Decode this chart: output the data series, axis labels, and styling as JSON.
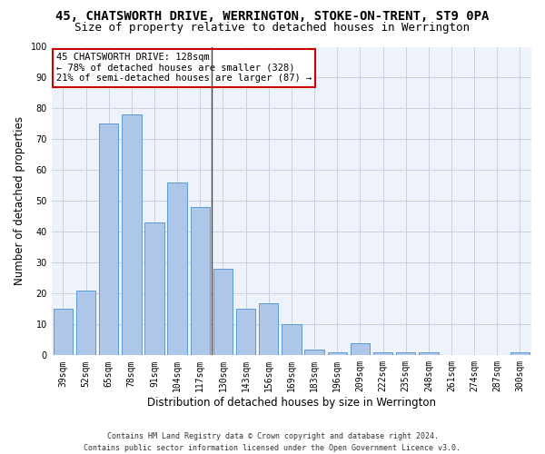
{
  "title": "45, CHATSWORTH DRIVE, WERRINGTON, STOKE-ON-TRENT, ST9 0PA",
  "subtitle": "Size of property relative to detached houses in Werrington",
  "xlabel": "Distribution of detached houses by size in Werrington",
  "ylabel": "Number of detached properties",
  "footer_line1": "Contains HM Land Registry data © Crown copyright and database right 2024.",
  "footer_line2": "Contains public sector information licensed under the Open Government Licence v3.0.",
  "categories": [
    "39sqm",
    "52sqm",
    "65sqm",
    "78sqm",
    "91sqm",
    "104sqm",
    "117sqm",
    "130sqm",
    "143sqm",
    "156sqm",
    "169sqm",
    "183sqm",
    "196sqm",
    "209sqm",
    "222sqm",
    "235sqm",
    "248sqm",
    "261sqm",
    "274sqm",
    "287sqm",
    "300sqm"
  ],
  "values": [
    15,
    21,
    75,
    78,
    43,
    56,
    48,
    28,
    15,
    17,
    10,
    2,
    1,
    4,
    1,
    1,
    1,
    0,
    0,
    0,
    1
  ],
  "bar_color": "#aec6e8",
  "bar_edge_color": "#5b9bd5",
  "grid_color": "#c8d0e0",
  "background_color": "#eef2fb",
  "vline_x": 6.5,
  "vline_color": "#444444",
  "annotation_line1": "45 CHATSWORTH DRIVE: 128sqm",
  "annotation_line2": "← 78% of detached houses are smaller (328)",
  "annotation_line3": "21% of semi-detached houses are larger (87) →",
  "annotation_box_color": "#cc0000",
  "ylim": [
    0,
    100
  ],
  "yticks": [
    0,
    10,
    20,
    30,
    40,
    50,
    60,
    70,
    80,
    90,
    100
  ],
  "title_fontsize": 10,
  "subtitle_fontsize": 9,
  "axis_label_fontsize": 8.5,
  "tick_fontsize": 7,
  "annotation_fontsize": 7.5,
  "footer_fontsize": 6
}
